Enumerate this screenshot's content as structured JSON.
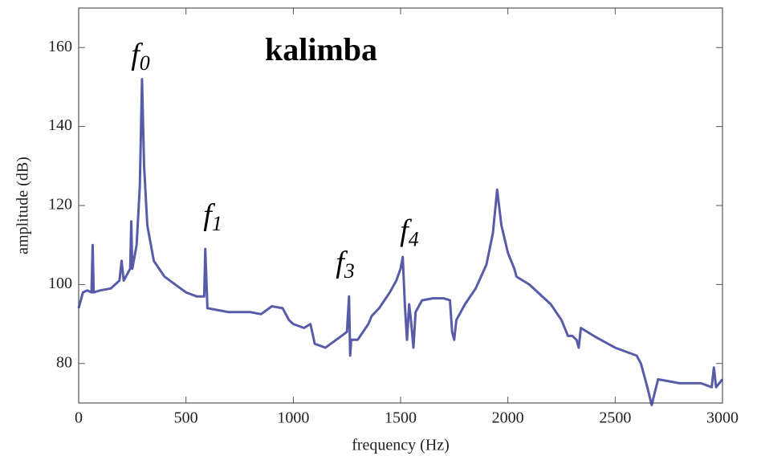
{
  "chart_data": {
    "type": "line",
    "title": "kalimba",
    "x_label": "frequency (Hz)",
    "y_label": "amplitude (dB)",
    "xlim": [
      0,
      3000
    ],
    "ylim": [
      70,
      170
    ],
    "xticks": [
      0,
      500,
      1000,
      1500,
      2000,
      2500,
      3000
    ],
    "yticks": [
      80,
      100,
      120,
      140,
      160
    ],
    "annotations": [
      {
        "label": "f",
        "sub": "0",
        "x": 288,
        "y": 157.6
      },
      {
        "label": "f",
        "sub": "1",
        "x": 625,
        "y": 117
      },
      {
        "label": "f",
        "sub": "3",
        "x": 1242,
        "y": 105
      },
      {
        "label": "f",
        "sub": "4",
        "x": 1541,
        "y": 113
      }
    ],
    "x": [
      0,
      20,
      40,
      60,
      65,
      70,
      100,
      150,
      190,
      200,
      210,
      240,
      245,
      250,
      270,
      285,
      295,
      305,
      320,
      350,
      400,
      450,
      500,
      550,
      585,
      590,
      600,
      650,
      700,
      800,
      850,
      900,
      950,
      980,
      1000,
      1050,
      1080,
      1100,
      1150,
      1200,
      1250,
      1260,
      1265,
      1270,
      1300,
      1350,
      1365,
      1400,
      1450,
      1480,
      1500,
      1510,
      1520,
      1530,
      1540,
      1550,
      1560,
      1570,
      1600,
      1650,
      1700,
      1730,
      1740,
      1750,
      1760,
      1800,
      1850,
      1900,
      1930,
      1950,
      1970,
      2000,
      2030,
      2040,
      2100,
      2200,
      2250,
      2280,
      2300,
      2320,
      2330,
      2340,
      2400,
      2500,
      2600,
      2620,
      2650,
      2670,
      2700,
      2800,
      2900,
      2950,
      2960,
      2970,
      3000
    ],
    "series": [
      {
        "color": "#3b3f99",
        "values": [
          94,
          98,
          98.5,
          98,
          110,
          98,
          98.5,
          99,
          101,
          106,
          101,
          104,
          116,
          104,
          110,
          125,
          152,
          130,
          115,
          106,
          102,
          100,
          98,
          97,
          97,
          109,
          94,
          93.5,
          93,
          93,
          92.5,
          94.5,
          94,
          91,
          90,
          89,
          90,
          85,
          84,
          86,
          88,
          97,
          82,
          86,
          86,
          90,
          92,
          94,
          98,
          101,
          104,
          107,
          95,
          86,
          95,
          90,
          84,
          93,
          96,
          96.5,
          96.5,
          96,
          88,
          86,
          91,
          95,
          99,
          105,
          113,
          124,
          115,
          108,
          104,
          102,
          100,
          95,
          91,
          87,
          87,
          86,
          84,
          89,
          87,
          84,
          82,
          80,
          74,
          69.5,
          76,
          75,
          75,
          74,
          79,
          74,
          76
        ]
      }
    ]
  }
}
